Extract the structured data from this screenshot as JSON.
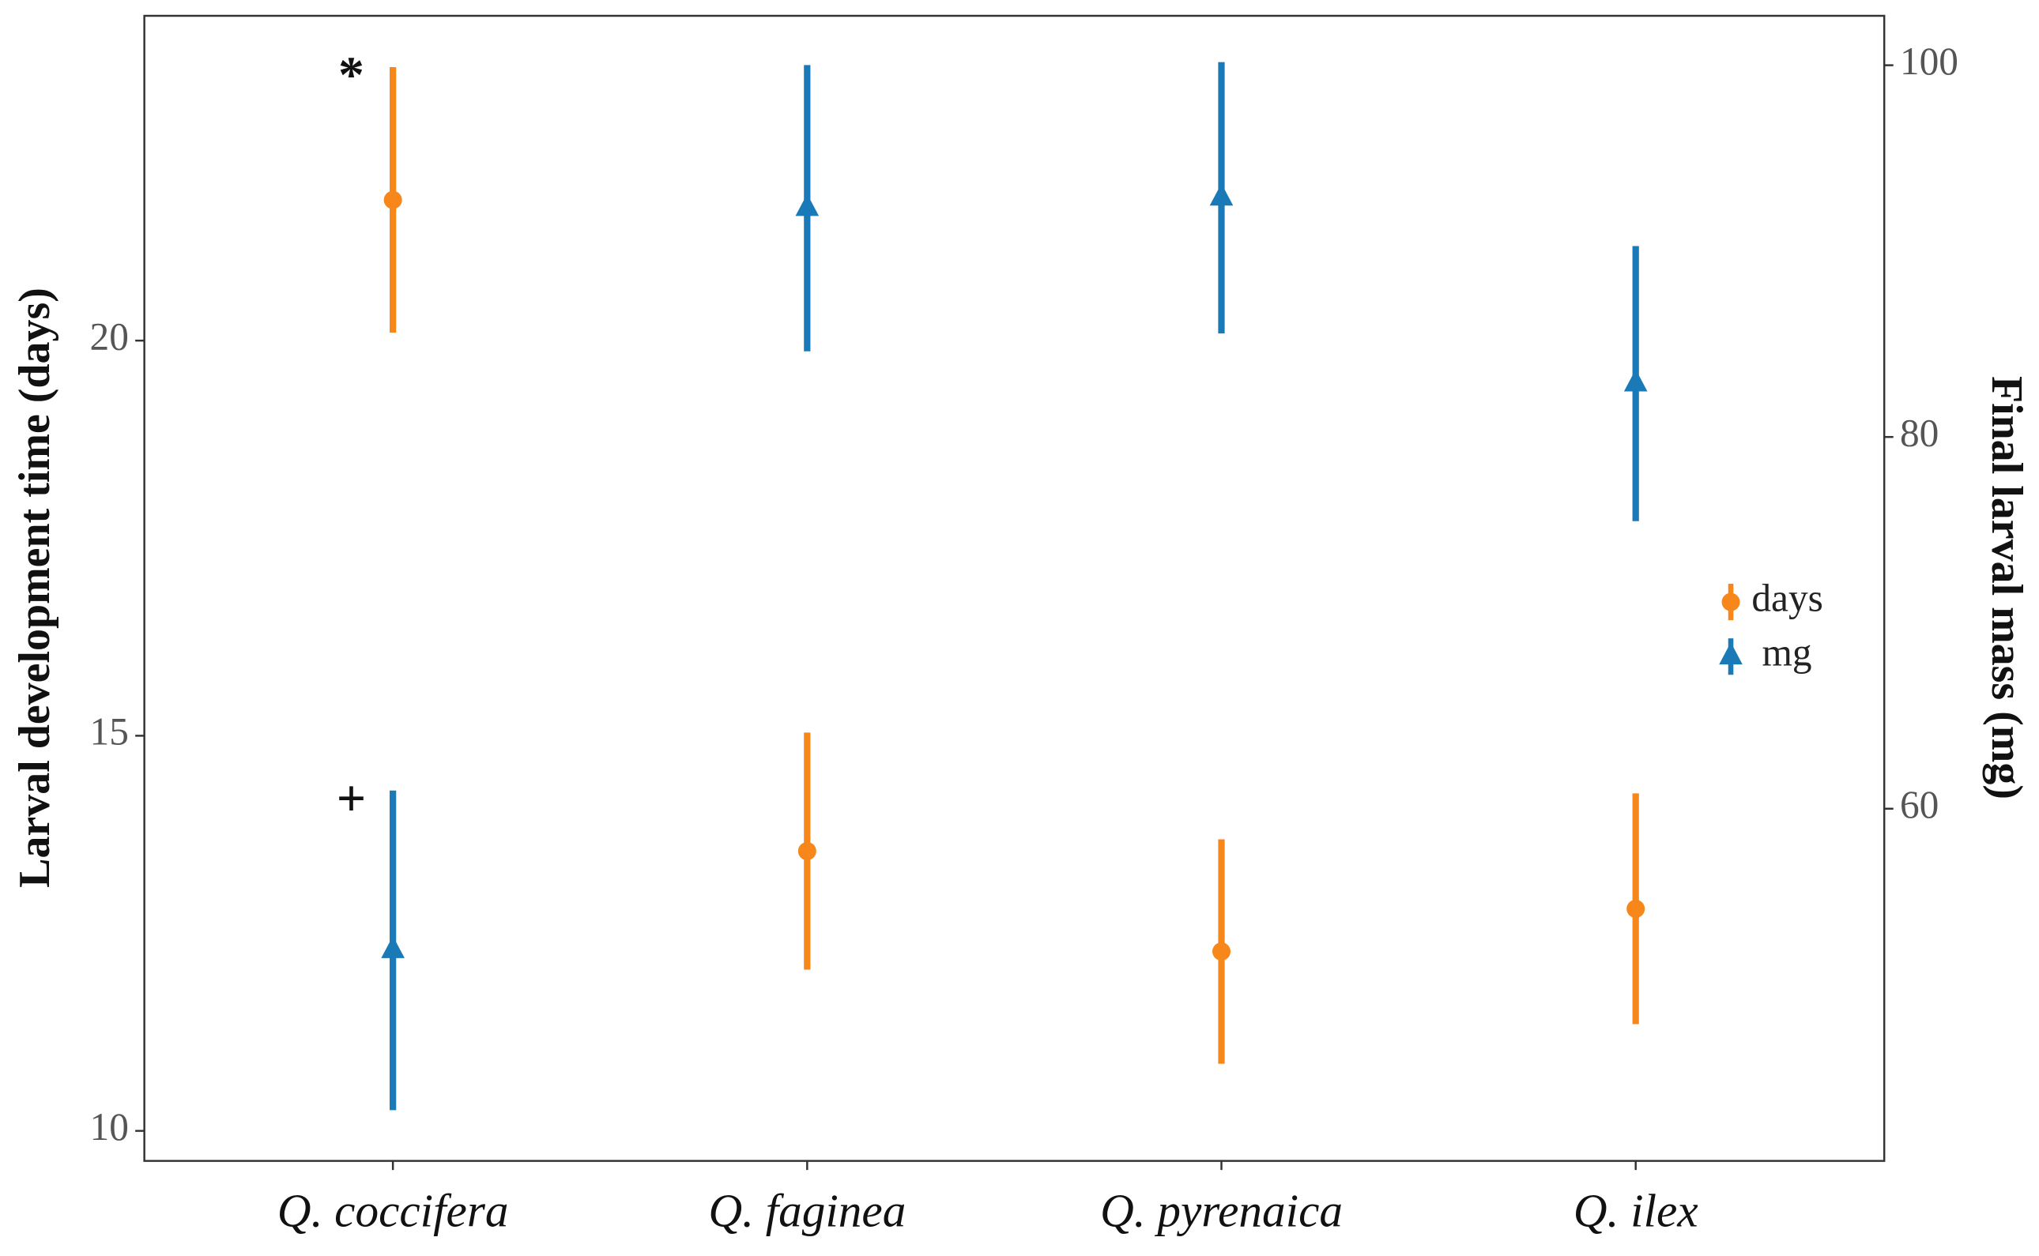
{
  "chart_data": {
    "type": "errorbar",
    "categories": [
      "Q. coccifera",
      "Q. faginea",
      "Q. pyrenaica",
      "Q. ilex"
    ],
    "ylabel": "Larval development time (days)",
    "y2label": "Final larval mass  (mg)",
    "ylim": [
      9.62,
      24.11
    ],
    "yticks": [
      10,
      15,
      20
    ],
    "y2lim": [
      41.05,
      102.66
    ],
    "y2ticks": [
      60,
      80,
      100
    ],
    "legend": "right",
    "series": [
      {
        "name": "days",
        "color": "#f7861b",
        "marker": "circle",
        "axis": "y",
        "values": [
          21.78,
          13.54,
          12.27,
          12.81
        ],
        "errors": [
          1.68,
          1.5,
          1.42,
          1.46
        ]
      },
      {
        "name": "mg",
        "color": "#1a7ab8",
        "marker": "triangle",
        "axis": "y2",
        "values": [
          52.38,
          92.31,
          92.87,
          82.87
        ],
        "errors": [
          8.6,
          7.7,
          7.3,
          7.4
        ]
      }
    ],
    "annotations": [
      {
        "text": "*",
        "series": 0,
        "category": 0
      },
      {
        "text": "+",
        "series": 1,
        "category": 0
      }
    ]
  }
}
